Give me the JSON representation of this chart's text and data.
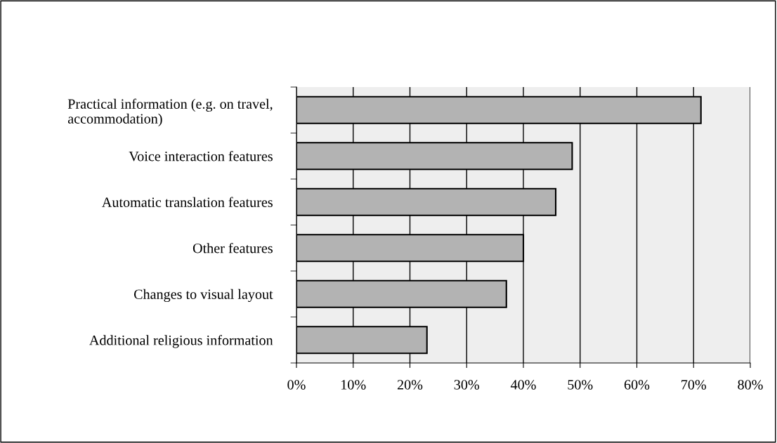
{
  "chart_data": {
    "type": "bar",
    "orientation": "horizontal",
    "categories": [
      "Practical information (e.g. on travel,\naccommodation)",
      "Voice interaction features",
      "Automatic translation features",
      "Other features",
      "Changes to visual layout",
      "Additional religious information"
    ],
    "values": [
      71.3,
      48.6,
      45.7,
      40.0,
      37.0,
      23.0
    ],
    "color": "#b3b3b3",
    "xlim": [
      0,
      80
    ],
    "xticks": [
      {
        "value": 0,
        "label": "0%"
      },
      {
        "value": 10,
        "label": "10%"
      },
      {
        "value": 20,
        "label": "20%"
      },
      {
        "value": 30,
        "label": "30%"
      },
      {
        "value": 40,
        "label": "40%"
      },
      {
        "value": 50,
        "label": "50%"
      },
      {
        "value": 60,
        "label": "60%"
      },
      {
        "value": 70,
        "label": "70%"
      },
      {
        "value": 80,
        "label": "80%"
      }
    ],
    "grid": "x",
    "legend": false
  }
}
